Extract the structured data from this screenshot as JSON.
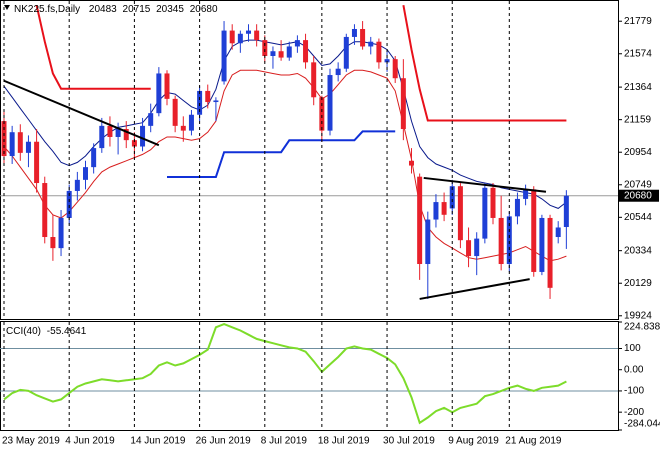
{
  "chart_data": [
    {
      "type": "candlestick",
      "title": "NK225.fs,Daily",
      "up_color": "#1f3fd6",
      "down_color": "#e8202a",
      "categories": [
        "23 May 2019",
        null,
        null,
        null,
        null,
        null,
        null,
        null,
        "4 Jun 2019",
        null,
        null,
        null,
        null,
        null,
        null,
        null,
        "14 Jun 2019",
        null,
        null,
        null,
        null,
        null,
        null,
        null,
        "26 Jun 2019",
        null,
        null,
        null,
        null,
        null,
        null,
        null,
        "8 Jul 2019",
        null,
        null,
        null,
        null,
        null,
        null,
        "18 Jul 2019",
        null,
        null,
        null,
        null,
        null,
        null,
        null,
        "30 Jul 2019",
        null,
        null,
        null,
        null,
        null,
        null,
        null,
        "9 Aug 2019",
        null,
        null,
        null,
        null,
        null,
        null,
        "21 Aug 2019",
        null,
        null,
        null,
        null,
        null,
        null,
        null
      ],
      "open": [
        21150,
        20930,
        21080,
        20950,
        21020,
        20760,
        20420,
        20350,
        20540,
        20710,
        20780,
        20860,
        20980,
        21120,
        21050,
        21100,
        21030,
        20990,
        21120,
        21200,
        21450,
        21290,
        21120,
        21090,
        21190,
        21340,
        21270,
        21400,
        21720,
        21640,
        21700,
        21720,
        21660,
        21560,
        21590,
        21550,
        21620,
        21660,
        21520,
        21300,
        21090,
        21440,
        21480,
        21680,
        21730,
        21620,
        21650,
        21520,
        21540,
        21420,
        20900,
        20800,
        20250,
        20530,
        20640,
        20600,
        20740,
        20400,
        20300,
        20410,
        20730,
        20540,
        20250,
        20550,
        20660,
        20720,
        20200,
        20540,
        20420,
        20483
      ],
      "high": [
        21210,
        21120,
        21130,
        21060,
        21100,
        20800,
        20560,
        20590,
        20750,
        20830,
        20900,
        21010,
        21170,
        21180,
        21140,
        21150,
        21080,
        21170,
        21260,
        21490,
        21470,
        21310,
        21180,
        21220,
        21370,
        21380,
        21300,
        21780,
        21760,
        21720,
        21760,
        21760,
        21690,
        21620,
        21660,
        21650,
        21690,
        21700,
        21560,
        21310,
        21480,
        21520,
        21700,
        21760,
        21780,
        21680,
        21670,
        21600,
        21560,
        21540,
        20980,
        20820,
        20580,
        20690,
        20700,
        20780,
        20760,
        20480,
        20450,
        20760,
        20760,
        20680,
        20580,
        20700,
        20750,
        20740,
        20560,
        20560,
        20520,
        20715
      ],
      "low": [
        20870,
        20880,
        20900,
        20860,
        20700,
        20380,
        20270,
        20300,
        20500,
        20650,
        20720,
        20820,
        20950,
        20990,
        20940,
        20980,
        20920,
        20960,
        21080,
        21180,
        21250,
        21080,
        21020,
        21060,
        21150,
        21230,
        21150,
        21380,
        21600,
        21580,
        21650,
        21620,
        21520,
        21480,
        21530,
        21530,
        21580,
        21480,
        21250,
        21020,
        21060,
        21400,
        21460,
        21630,
        21600,
        21570,
        21480,
        21460,
        21390,
        21030,
        20820,
        20150,
        20030,
        20480,
        20520,
        20560,
        20350,
        20230,
        20180,
        20380,
        20500,
        20210,
        20200,
        20500,
        20620,
        20170,
        20180,
        20030,
        20380,
        20345
      ],
      "close": [
        20930,
        21080,
        20950,
        21020,
        20760,
        20420,
        20350,
        20540,
        20710,
        20780,
        20860,
        20980,
        21120,
        21050,
        21100,
        21030,
        20990,
        21120,
        21200,
        21450,
        21290,
        21120,
        21090,
        21190,
        21340,
        21270,
        21280,
        21720,
        21640,
        21700,
        21720,
        21660,
        21560,
        21590,
        21550,
        21620,
        21660,
        21520,
        21300,
        21090,
        21440,
        21480,
        21680,
        21730,
        21620,
        21650,
        21520,
        21540,
        21420,
        21100,
        20870,
        20250,
        20530,
        20640,
        20560,
        20740,
        20400,
        20300,
        20410,
        20730,
        20540,
        20250,
        20550,
        20660,
        20720,
        20200,
        20540,
        20100,
        20480,
        20680
      ],
      "lines": [
        {
          "color": "#0a1a8c",
          "width": 1,
          "values": [
            21370,
            21300,
            21230,
            21160,
            21090,
            21020,
            20960,
            20890,
            20870,
            20890,
            20930,
            20990,
            21040,
            21080,
            21110,
            21120,
            21130,
            21140,
            21200,
            21280,
            21330,
            21320,
            21280,
            21240,
            21220,
            21250,
            21350,
            21530,
            21620,
            21650,
            21660,
            21660,
            21650,
            21640,
            21630,
            21640,
            21650,
            21620,
            21560,
            21500,
            21510,
            21560,
            21620,
            21650,
            21650,
            21640,
            21630,
            21600,
            21530,
            21350,
            21150,
            20990,
            20920,
            20880,
            20860,
            20840,
            20810,
            20790,
            20770,
            20760,
            20750,
            20730,
            20720,
            20710,
            20700,
            20690,
            20660,
            20620,
            20600,
            20640
          ]
        },
        {
          "color": "#d81e1e",
          "width": 1,
          "values": [
            20990,
            20930,
            20860,
            20790,
            20720,
            20620,
            20560,
            20540,
            20580,
            20640,
            20700,
            20770,
            20830,
            20860,
            20880,
            20900,
            20920,
            20940,
            20970,
            21020,
            21050,
            21050,
            21040,
            21030,
            21040,
            21080,
            21150,
            21340,
            21440,
            21470,
            21470,
            21470,
            21460,
            21450,
            21440,
            21440,
            21450,
            21420,
            21360,
            21290,
            21320,
            21380,
            21440,
            21470,
            21470,
            21460,
            21440,
            21420,
            21340,
            21130,
            20910,
            20620,
            20480,
            20420,
            20380,
            20350,
            20320,
            20290,
            20280,
            20290,
            20300,
            20310,
            20320,
            20340,
            20360,
            20330,
            20300,
            20270,
            20280,
            20300
          ]
        },
        {
          "color": "#e8101a",
          "width": 2,
          "values": [
            null,
            null,
            null,
            null,
            21880,
            21650,
            21450,
            21354,
            21354,
            21354,
            21354,
            21354,
            21354,
            21354,
            21354,
            21354,
            21354,
            21354,
            21354,
            null,
            null,
            null,
            null,
            null,
            null,
            null,
            null,
            null,
            null,
            null,
            null,
            null,
            null,
            null,
            null,
            null,
            null,
            null,
            null,
            null,
            null,
            null,
            null,
            null,
            null,
            null,
            null,
            null,
            null,
            21880,
            21600,
            21350,
            21154,
            21154,
            21154,
            21154,
            21154,
            21154,
            21154,
            21154,
            21154,
            21154,
            21154,
            21154,
            21154,
            21154,
            21154,
            21154,
            21154,
            21154
          ]
        },
        {
          "color": "#1030d8",
          "width": 2,
          "values": [
            null,
            null,
            null,
            null,
            null,
            null,
            null,
            null,
            null,
            null,
            null,
            null,
            null,
            null,
            null,
            null,
            null,
            null,
            null,
            null,
            20798,
            20798,
            20798,
            20798,
            20798,
            20798,
            20798,
            20954,
            20954,
            20954,
            20954,
            20954,
            20954,
            20954,
            20954,
            21029,
            21029,
            21029,
            21029,
            21029,
            21029,
            21029,
            21029,
            21029,
            21085,
            21085,
            21085,
            21085,
            21085,
            null,
            null,
            null,
            null,
            null,
            null,
            null,
            null,
            null,
            null,
            null,
            null,
            null,
            null,
            null,
            null,
            null,
            null,
            null,
            null,
            null
          ]
        }
      ],
      "trendlines": [
        {
          "color": "#000000",
          "x": [
            0,
            19
          ],
          "y": [
            21404,
            20998
          ]
        },
        {
          "color": "#000000",
          "x": [
            51.5,
            66.5
          ],
          "y": [
            20792,
            20705
          ]
        },
        {
          "color": "#000000",
          "x": [
            51,
            64.5
          ],
          "y": [
            20030,
            20155
          ]
        }
      ],
      "ylim": [
        19910,
        21900
      ],
      "yticks": [
        21779,
        21574,
        21364,
        21159,
        20954,
        20749,
        20544,
        20334,
        20129,
        19924
      ]
    },
    {
      "type": "line",
      "title": "CCI(40)",
      "color": "#7ddc2a",
      "levels": [
        100,
        -100
      ],
      "values": [
        -140,
        -110,
        -95,
        -100,
        -120,
        -135,
        -150,
        -140,
        -110,
        -80,
        -65,
        -55,
        -45,
        -50,
        -55,
        -50,
        -45,
        -40,
        -20,
        20,
        35,
        20,
        30,
        50,
        70,
        95,
        200,
        215,
        200,
        185,
        165,
        145,
        135,
        125,
        115,
        105,
        100,
        85,
        40,
        -10,
        25,
        60,
        100,
        110,
        100,
        95,
        75,
        55,
        25,
        -40,
        -130,
        -250,
        -225,
        -195,
        -180,
        -200,
        -180,
        -170,
        -160,
        -125,
        -115,
        -100,
        -85,
        -75,
        -90,
        -100,
        -85,
        -80,
        -75,
        -55.4641
      ],
      "ylim": [
        -284.044,
        224.8386
      ],
      "yticks": [
        224.8386,
        100,
        {
          "value": 0,
          "label": "0.00"
        },
        -100,
        -200,
        -284.044
      ]
    }
  ]
}
